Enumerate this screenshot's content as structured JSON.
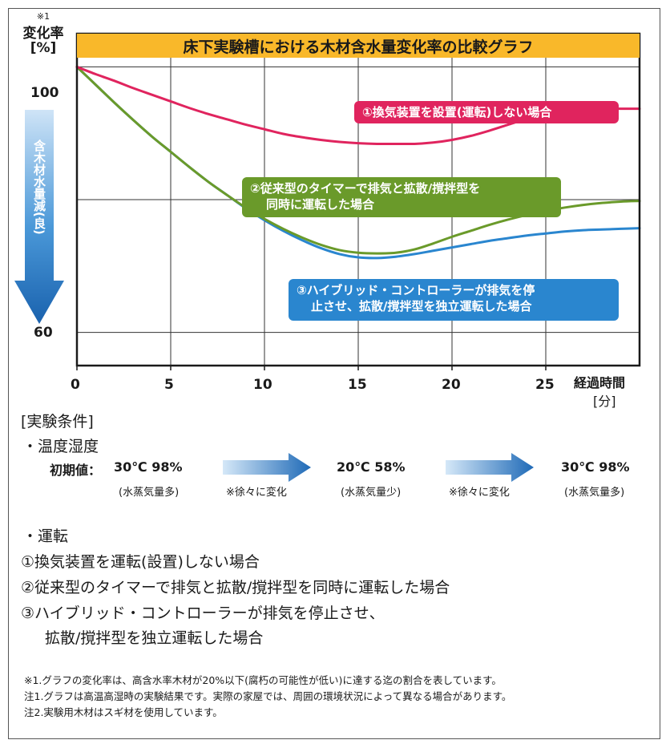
{
  "chart_data": {
    "type": "line",
    "title": "床下実験槽における木材含水量変化率の比較グラフ",
    "ylabel_note": "※1",
    "ylabel": "変化率",
    "yunit": "[%]",
    "xlabel": "経過時間",
    "xunit": "[分]",
    "x_ticks": [
      "0",
      "5",
      "10",
      "15",
      "20",
      "25"
    ],
    "y_ticks": [
      "100",
      "60"
    ],
    "xlim": [
      0,
      30
    ],
    "ylim": [
      55,
      105
    ],
    "direction_label": "含木材水量減(良)",
    "series": [
      {
        "name": "①換気装置を設置(運転)しない場合",
        "color": "#e0245e",
        "x": [
          0,
          1,
          2,
          3,
          4,
          5,
          6,
          7,
          8,
          9,
          10,
          11,
          12,
          13,
          14,
          15,
          16,
          17,
          18,
          19,
          20,
          21,
          22,
          23,
          24,
          25,
          26,
          27,
          28,
          29,
          30
        ],
        "y": [
          100,
          98.9,
          97.9,
          96.8,
          95.8,
          94.8,
          93.8,
          92.9,
          92.1,
          91.3,
          90.6,
          89.9,
          89.4,
          89.0,
          88.7,
          88.5,
          88.4,
          88.4,
          88.4,
          88.6,
          89.0,
          89.6,
          90.4,
          91.3,
          92.2,
          92.9,
          93.4,
          93.6,
          93.7,
          93.7,
          93.7
        ]
      },
      {
        "name": "②従来型のタイマーで排気と拡散/撹拌型を同時に運転した場合",
        "color": "#6a9a2a",
        "x": [
          0,
          1,
          2,
          3,
          4,
          5,
          6,
          7,
          8,
          9,
          10,
          11,
          12,
          13,
          14,
          15,
          16,
          17,
          18,
          19,
          20,
          21,
          22,
          23,
          24,
          25,
          26,
          27,
          28,
          29,
          30
        ],
        "y": [
          100,
          97.3,
          94.6,
          92.0,
          89.5,
          87.2,
          84.9,
          82.7,
          80.7,
          78.8,
          77.1,
          75.6,
          74.3,
          73.2,
          72.4,
          72.0,
          71.9,
          72.0,
          72.5,
          73.4,
          74.4,
          75.3,
          76.2,
          77.0,
          77.7,
          78.3,
          78.8,
          79.2,
          79.5,
          79.7,
          79.8
        ]
      },
      {
        "name": "③ハイブリッド・コントローラーが排気を停止させ、拡散/撹拌型を独立運転した場合",
        "color": "#2a86cf",
        "x": [
          0,
          1,
          2,
          3,
          4,
          5,
          6,
          7,
          8,
          9,
          10,
          11,
          12,
          13,
          14,
          15,
          16,
          17,
          18,
          19,
          20,
          21,
          22,
          23,
          24,
          25,
          26,
          27,
          28,
          29,
          30
        ],
        "y": [
          100,
          97.3,
          94.6,
          92.0,
          89.5,
          87.2,
          84.9,
          82.7,
          80.7,
          78.7,
          76.9,
          75.3,
          73.9,
          72.7,
          71.8,
          71.3,
          71.2,
          71.4,
          71.8,
          72.3,
          72.8,
          73.3,
          73.8,
          74.2,
          74.6,
          74.9,
          75.2,
          75.4,
          75.5,
          75.6,
          75.7
        ]
      }
    ],
    "grid": true
  },
  "labels": {
    "s1": "①換気装置を設置(運転)しない場合",
    "s2_line1": "②従来型のタイマーで排気と拡散/撹拌型を",
    "s2_line2": "同時に運転した場合",
    "s3_line1": "③ハイブリッド・コントローラーが排気を停",
    "s3_line2": "止させ、拡散/撹拌型を独立運転した場合"
  },
  "conditions": {
    "heading": "[実験条件]",
    "temp_heading": "・温度湿度",
    "initial_label": "初期値：",
    "stage1_value": "30℃ 98%",
    "stage1_note": "(水蒸気量多)",
    "arrow1_note": "※徐々に変化",
    "stage2_value": "20℃ 58%",
    "stage2_note": "(水蒸気量少)",
    "arrow2_note": "※徐々に変化",
    "stage3_value": "30℃ 98%",
    "stage3_note": "(水蒸気量多)",
    "op_heading": "・運転",
    "op1": "①換気装置を運転(設置)しない場合",
    "op2": "②従来型のタイマーで排気と拡散/撹拌型を同時に運転した場合",
    "op3_line1": "③ハイブリッド・コントローラーが排気を停止させ、",
    "op3_line2": "拡散/撹拌型を独立運転した場合"
  },
  "notes": {
    "n1": "※1.グラフの変化率は、高含水率木材が20%以下(腐朽の可能性が低い)に達する迄の割合を表しています。",
    "n2": "注1.グラフは高温高湿時の実験結果です。実際の家屋では、周囲の環境状況によって異なる場合があります。",
    "n3": "注2.実験用木材はスギ材を使用しています。"
  }
}
